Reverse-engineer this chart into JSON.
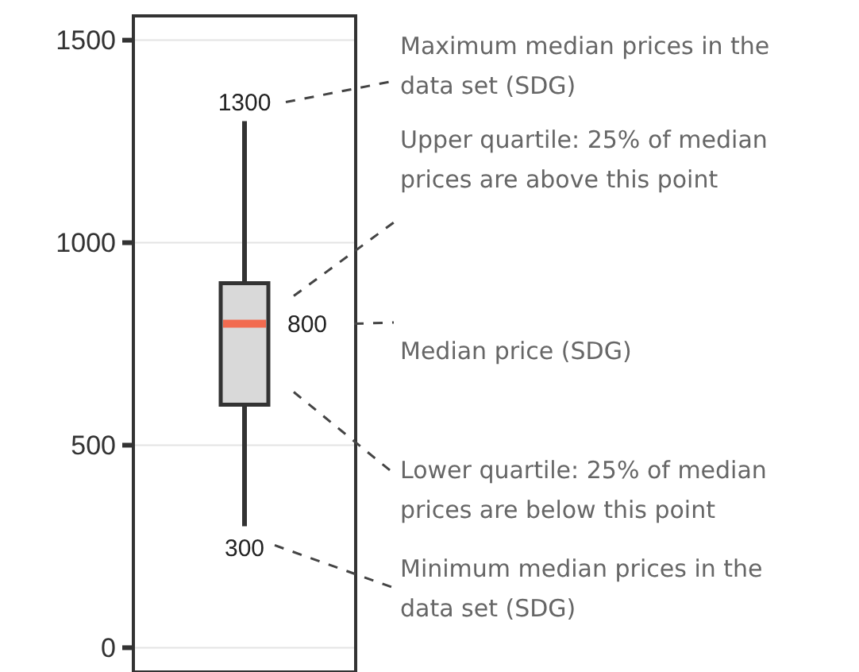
{
  "chart_data": {
    "type": "box",
    "categories": [
      null
    ],
    "boxes": [
      {
        "low": 300,
        "q1": 600,
        "median": 800,
        "q3": 900,
        "high": 1300
      }
    ],
    "color": "#d9d9d9",
    "ylim": [
      -60,
      1560
    ],
    "yticks": [
      0,
      500,
      1000,
      1500
    ],
    "grid": "y",
    "annotations": [
      "Maximum median prices in the data set (SDG)",
      "Upper quartile: 25% of median prices are above this point",
      "Median price (SDG)",
      "Lower quartile: 25% of median prices are below this point",
      "Minimum median prices in the data set (SDG)",
      {
        "text": "1300",
        "y": 1300
      },
      "800",
      {
        "text": "300",
        "y": 300
      }
    ]
  }
}
